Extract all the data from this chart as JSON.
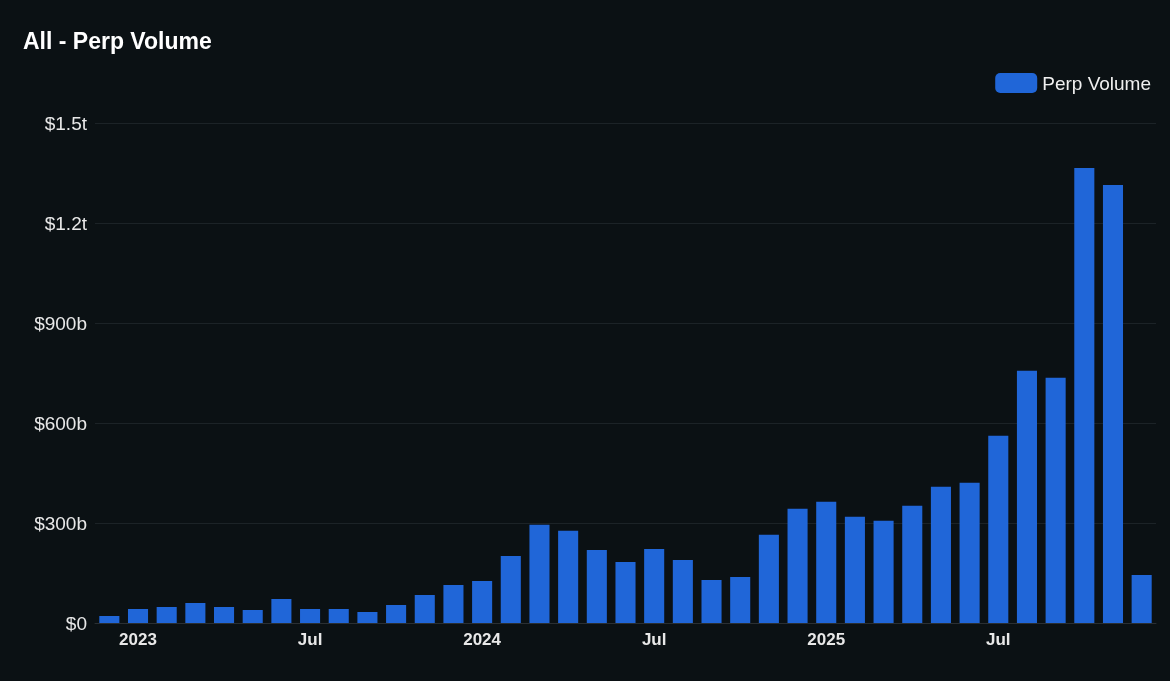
{
  "chart_data": {
    "type": "bar",
    "title": "All - Perp Volume",
    "categories": [
      null,
      "2023",
      null,
      null,
      null,
      null,
      null,
      "Jul",
      null,
      null,
      null,
      null,
      null,
      "2024",
      null,
      null,
      null,
      null,
      null,
      "Jul",
      null,
      null,
      null,
      null,
      null,
      "2025",
      null,
      null,
      null,
      null,
      null,
      "Jul",
      null,
      null,
      null,
      null,
      null
    ],
    "series": [
      {
        "name": "Perp Volume",
        "color": "#2066d8",
        "values": [
          21000000000,
          42000000000,
          48000000000,
          60000000000,
          48000000000,
          39000000000,
          72000000000,
          42000000000,
          42000000000,
          33000000000,
          54000000000,
          84000000000,
          114000000000,
          126000000000,
          201000000000,
          295000000000,
          277000000000,
          219000000000,
          183000000000,
          222000000000,
          189000000000,
          129000000000,
          138000000000,
          265000000000,
          343000000000,
          364000000000,
          319000000000,
          307000000000,
          352000000000,
          409000000000,
          421000000000,
          562000000000,
          757000000000,
          736000000000,
          1365000000000,
          1314000000000,
          144000000000
        ]
      }
    ],
    "ylim": [
      0,
      1500000000000
    ],
    "yticks": [
      {
        "value": 0,
        "label": "$0"
      },
      {
        "value": 300000000000,
        "label": "$300b"
      },
      {
        "value": 600000000000,
        "label": "$600b"
      },
      {
        "value": 900000000000,
        "label": "$900b"
      },
      {
        "value": 1200000000000,
        "label": "$1.2t"
      },
      {
        "value": 1500000000000,
        "label": "$1.5t"
      }
    ],
    "grid": "y",
    "legend": "top right"
  }
}
